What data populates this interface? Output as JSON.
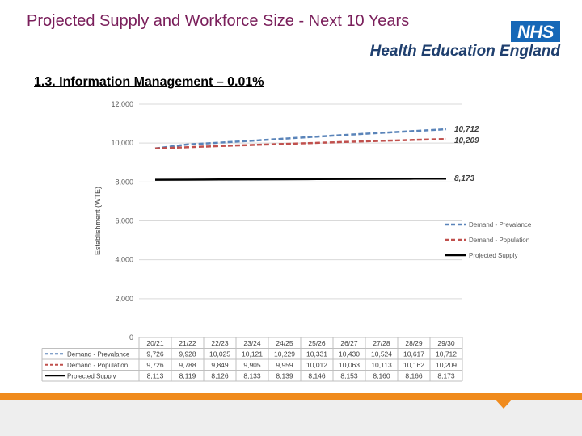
{
  "header": {
    "title": "Projected Supply and Workforce Size - Next 10 Years",
    "logo_text": "NHS",
    "org_name": "Health Education England"
  },
  "section": {
    "heading": "1.3. Information Management – 0.01%"
  },
  "chart_data": {
    "type": "line",
    "ylabel": "Establishment (WTE)",
    "ylim": [
      0,
      12000
    ],
    "yticks": [
      "0",
      "2,000",
      "4,000",
      "6,000",
      "8,000",
      "10,000",
      "12,000"
    ],
    "grid": true,
    "legend_position": "right",
    "categories": [
      "20/21",
      "21/22",
      "22/23",
      "23/24",
      "24/25",
      "25/26",
      "26/27",
      "27/28",
      "28/29",
      "29/30"
    ],
    "series": [
      {
        "name": "Demand - Prevalance",
        "color": "#5a84b9",
        "style": "dashed",
        "values": [
          9726,
          9928,
          10025,
          10121,
          10229,
          10331,
          10430,
          10524,
          10617,
          10712
        ],
        "labels": [
          "9,726",
          "9,928",
          "10,025",
          "10,121",
          "10,229",
          "10,331",
          "10,430",
          "10,524",
          "10,617",
          "10,712"
        ],
        "end_label": "10,712"
      },
      {
        "name": "Demand - Population",
        "color": "#c0504d",
        "style": "dashed",
        "values": [
          9726,
          9788,
          9849,
          9905,
          9959,
          10012,
          10063,
          10113,
          10162,
          10209
        ],
        "labels": [
          "9,726",
          "9,788",
          "9,849",
          "9,905",
          "9,959",
          "10,012",
          "10,063",
          "10,113",
          "10,162",
          "10,209"
        ],
        "end_label": "10,209"
      },
      {
        "name": "Projected Supply",
        "color": "#000000",
        "style": "solid",
        "values": [
          8113,
          8119,
          8126,
          8133,
          8139,
          8146,
          8153,
          8160,
          8166,
          8173
        ],
        "labels": [
          "8,113",
          "8,119",
          "8,126",
          "8,133",
          "8,139",
          "8,146",
          "8,153",
          "8,160",
          "8,166",
          "8,173"
        ],
        "end_label": "8,173"
      }
    ]
  }
}
